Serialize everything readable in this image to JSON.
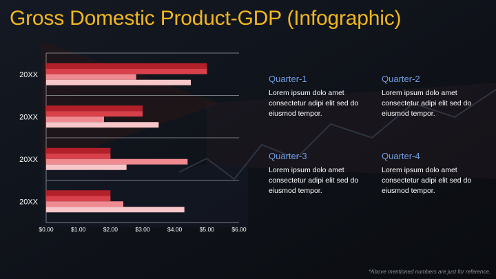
{
  "slide": {
    "title": "Gross Domestic Product-GDP (Infographic)",
    "footnote": "*Above mentioned numbers are just for reference."
  },
  "quarters": [
    {
      "title": "Quarter-1",
      "text": "Lorem ipsum dolo amet consectetur adipi elit sed do eiusmod tempor."
    },
    {
      "title": "Quarter-2",
      "text": "Lorem ipsum dolo amet consectetur adipi elit sed do eiusmod tempor."
    },
    {
      "title": "Quarter-3",
      "text": "Lorem ipsum dolo amet consectetur adipi elit sed do eiusmod tempor."
    },
    {
      "title": "Quarter-4",
      "text": "Lorem ipsum dolo amet consectetur adipi elit sed do eiusmod tempor."
    }
  ],
  "chart_data": {
    "type": "bar",
    "orientation": "horizontal",
    "categories": [
      "20XX",
      "20XX",
      "20XX",
      "20XX"
    ],
    "series": [
      {
        "values": [
          5.0,
          3.0,
          2.0,
          2.0
        ],
        "color": "#b3202a"
      },
      {
        "values": [
          5.0,
          3.0,
          2.0,
          2.0
        ],
        "color": "#d8404a"
      },
      {
        "values": [
          2.8,
          1.8,
          4.4,
          2.4
        ],
        "color": "#ef8a90"
      },
      {
        "values": [
          4.5,
          3.5,
          2.5,
          4.3
        ],
        "color": "#f7c7c9"
      }
    ],
    "xlim": [
      0,
      6
    ],
    "xticks": [
      "$0.00",
      "$1.00",
      "$2.00",
      "$3.00",
      "$4.00",
      "$5.00",
      "$6.00"
    ],
    "grid": true
  }
}
